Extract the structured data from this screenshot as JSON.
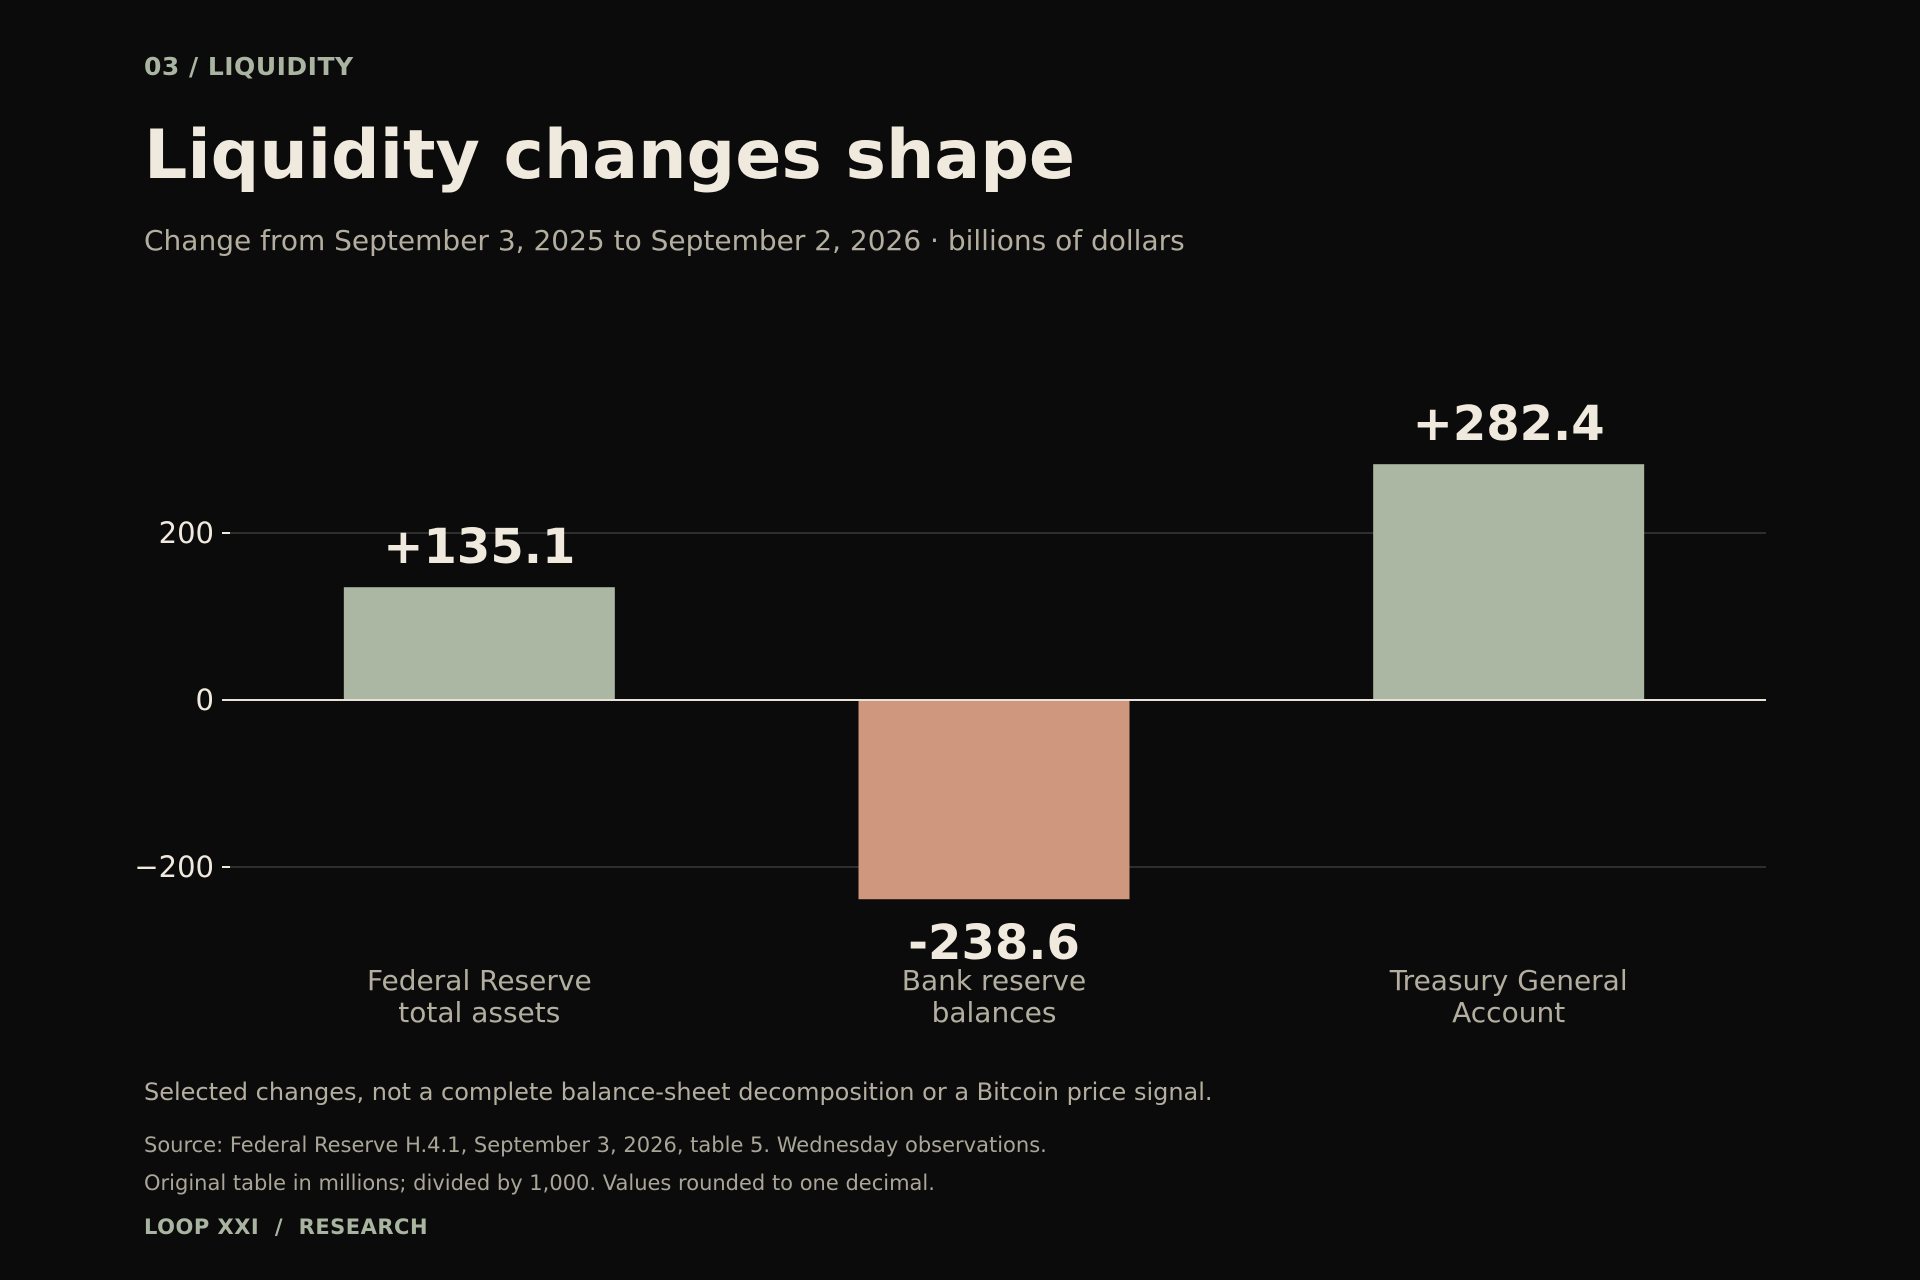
{
  "header": {
    "section": "03 / LIQUIDITY",
    "title": "Liquidity changes shape",
    "subtitle": "Change from September 3, 2025 to September 2, 2026 · billions of dollars"
  },
  "colors": {
    "background": "#0b0b0b",
    "positive": "#abb7a2",
    "negative": "#cf987e",
    "value_label": "#f0e9dd",
    "category_label": "#b3ae9f",
    "tick_label": "#f0e9dd",
    "zero_line": "#e8e2d6",
    "grid": "#3a3a3a"
  },
  "chart_data": {
    "type": "bar",
    "categories": [
      [
        "Federal Reserve",
        "total assets"
      ],
      [
        "Bank reserve",
        "balances"
      ],
      [
        "Treasury General",
        "Account"
      ]
    ],
    "values": [
      135.1,
      -238.6,
      282.4
    ],
    "value_labels": [
      "+135.1",
      "-238.6",
      "+282.4"
    ],
    "yticks": [
      200,
      0,
      -200
    ],
    "ytick_labels": [
      "200",
      "0",
      "−200"
    ],
    "ylim": [
      -300,
      350
    ],
    "grid": true,
    "xlabel": "",
    "ylabel": ""
  },
  "notes": {
    "footnote": "Selected changes, not a complete balance-sheet decomposition or a Bitcoin price signal.",
    "source_line1": "Source: Federal Reserve H.4.1, September 3, 2026, table 5. Wednesday observations.",
    "source_line2": "Original table in millions; divided by 1,000. Values rounded to one decimal.",
    "brand": "LOOP XXI  /  RESEARCH"
  }
}
